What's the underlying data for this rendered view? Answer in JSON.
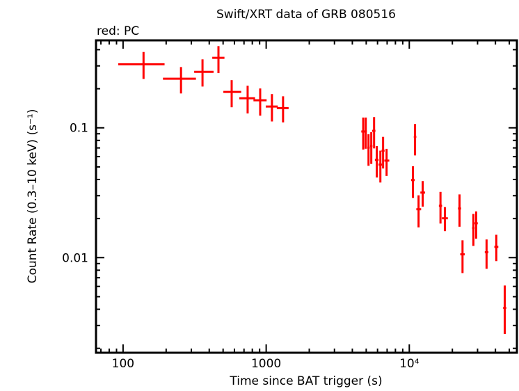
{
  "chart_data": {
    "type": "scatter",
    "title": "Swift/XRT data of GRB 080516",
    "subtitle": "red: PC",
    "xlabel": "Time since BAT trigger (s)",
    "ylabel": "Count Rate (0.3–10 keV) (s⁻¹)",
    "x_scale": "log",
    "y_scale": "log",
    "xlim": [
      64.7,
      56500
    ],
    "ylim": [
      0.00185,
      0.472
    ],
    "x_ticks": [
      {
        "value": 100,
        "label": "100"
      },
      {
        "value": 1000,
        "label": "1000"
      },
      {
        "value": 10000,
        "label": "10⁴"
      }
    ],
    "y_ticks": [
      {
        "value": 0.1,
        "label": "0.1"
      },
      {
        "value": 0.01,
        "label": "0.01"
      }
    ],
    "grid": false,
    "series": [
      {
        "color": "#ff0000",
        "mode": "PC",
        "points": [
          {
            "x": 139,
            "x_lo": 92.5,
            "x_hi": 195,
            "y": 0.309,
            "y_lo": 0.238,
            "y_hi": 0.384
          },
          {
            "x": 254,
            "x_lo": 190,
            "x_hi": 323,
            "y": 0.239,
            "y_lo": 0.184,
            "y_hi": 0.294
          },
          {
            "x": 359,
            "x_lo": 314,
            "x_hi": 429,
            "y": 0.27,
            "y_lo": 0.208,
            "y_hi": 0.337
          },
          {
            "x": 464,
            "x_lo": 420,
            "x_hi": 511,
            "y": 0.346,
            "y_lo": 0.264,
            "y_hi": 0.426
          },
          {
            "x": 574,
            "x_lo": 502,
            "x_hi": 669,
            "y": 0.189,
            "y_lo": 0.144,
            "y_hi": 0.233
          },
          {
            "x": 742,
            "x_lo": 649,
            "x_hi": 836,
            "y": 0.169,
            "y_lo": 0.129,
            "y_hi": 0.211
          },
          {
            "x": 908,
            "x_lo": 815,
            "x_hi": 1007,
            "y": 0.163,
            "y_lo": 0.124,
            "y_hi": 0.201
          },
          {
            "x": 1097,
            "x_lo": 993,
            "x_hi": 1205,
            "y": 0.146,
            "y_lo": 0.112,
            "y_hi": 0.182
          },
          {
            "x": 1312,
            "x_lo": 1186,
            "x_hi": 1435,
            "y": 0.142,
            "y_lo": 0.11,
            "y_hi": 0.175
          },
          {
            "x": 4766,
            "x_lo": 4620,
            "x_hi": 4920,
            "y": 0.0937,
            "y_lo": 0.068,
            "y_hi": 0.12
          },
          {
            "x": 4963,
            "x_lo": 4880,
            "x_hi": 5050,
            "y": 0.094,
            "y_lo": 0.069,
            "y_hi": 0.12
          },
          {
            "x": 5190,
            "x_lo": 5100,
            "x_hi": 5290,
            "y": 0.0703,
            "y_lo": 0.051,
            "y_hi": 0.0892
          },
          {
            "x": 5425,
            "x_lo": 5320,
            "x_hi": 5530,
            "y": 0.0723,
            "y_lo": 0.0527,
            "y_hi": 0.0925
          },
          {
            "x": 5675,
            "x_lo": 5500,
            "x_hi": 5800,
            "y": 0.0948,
            "y_lo": 0.0694,
            "y_hi": 0.121
          },
          {
            "x": 5930,
            "x_lo": 5750,
            "x_hi": 6100,
            "y": 0.0566,
            "y_lo": 0.0414,
            "y_hi": 0.0723
          },
          {
            "x": 6280,
            "x_lo": 6100,
            "x_hi": 6450,
            "y": 0.0521,
            "y_lo": 0.0379,
            "y_hi": 0.0667
          },
          {
            "x": 6560,
            "x_lo": 6400,
            "x_hi": 6720,
            "y": 0.0667,
            "y_lo": 0.0486,
            "y_hi": 0.0852
          },
          {
            "x": 6940,
            "x_lo": 6700,
            "x_hi": 7250,
            "y": 0.0559,
            "y_lo": 0.0426,
            "y_hi": 0.0689
          },
          {
            "x": 10970,
            "x_lo": 10750,
            "x_hi": 11200,
            "y": 0.0852,
            "y_lo": 0.0613,
            "y_hi": 0.107
          },
          {
            "x": 10610,
            "x_lo": 10300,
            "x_hi": 10900,
            "y": 0.0396,
            "y_lo": 0.0288,
            "y_hi": 0.0506
          },
          {
            "x": 11610,
            "x_lo": 11200,
            "x_hi": 12100,
            "y": 0.0236,
            "y_lo": 0.0171,
            "y_hi": 0.0302
          },
          {
            "x": 12410,
            "x_lo": 11950,
            "x_hi": 12900,
            "y": 0.0317,
            "y_lo": 0.0247,
            "y_hi": 0.0389
          },
          {
            "x": 16520,
            "x_lo": 16100,
            "x_hi": 16950,
            "y": 0.0251,
            "y_lo": 0.0183,
            "y_hi": 0.0321
          },
          {
            "x": 17730,
            "x_lo": 16900,
            "x_hi": 18600,
            "y": 0.0201,
            "y_lo": 0.016,
            "y_hi": 0.0245
          },
          {
            "x": 22440,
            "x_lo": 21900,
            "x_hi": 23000,
            "y": 0.0239,
            "y_lo": 0.0173,
            "y_hi": 0.0307
          },
          {
            "x": 23550,
            "x_lo": 22700,
            "x_hi": 24400,
            "y": 0.0106,
            "y_lo": 0.0076,
            "y_hi": 0.0136
          },
          {
            "x": 28050,
            "x_lo": 27500,
            "x_hi": 28600,
            "y": 0.0169,
            "y_lo": 0.0123,
            "y_hi": 0.0217
          },
          {
            "x": 29320,
            "x_lo": 28600,
            "x_hi": 30100,
            "y": 0.0184,
            "y_lo": 0.014,
            "y_hi": 0.0227
          },
          {
            "x": 34670,
            "x_lo": 33700,
            "x_hi": 35700,
            "y": 0.011,
            "y_lo": 0.0082,
            "y_hi": 0.0138
          },
          {
            "x": 40550,
            "x_lo": 39300,
            "x_hi": 41900,
            "y": 0.0121,
            "y_lo": 0.0094,
            "y_hi": 0.015
          },
          {
            "x": 46440,
            "x_lo": 45300,
            "x_hi": 47600,
            "y": 0.0041,
            "y_lo": 0.00258,
            "y_hi": 0.0061
          }
        ]
      }
    ]
  }
}
